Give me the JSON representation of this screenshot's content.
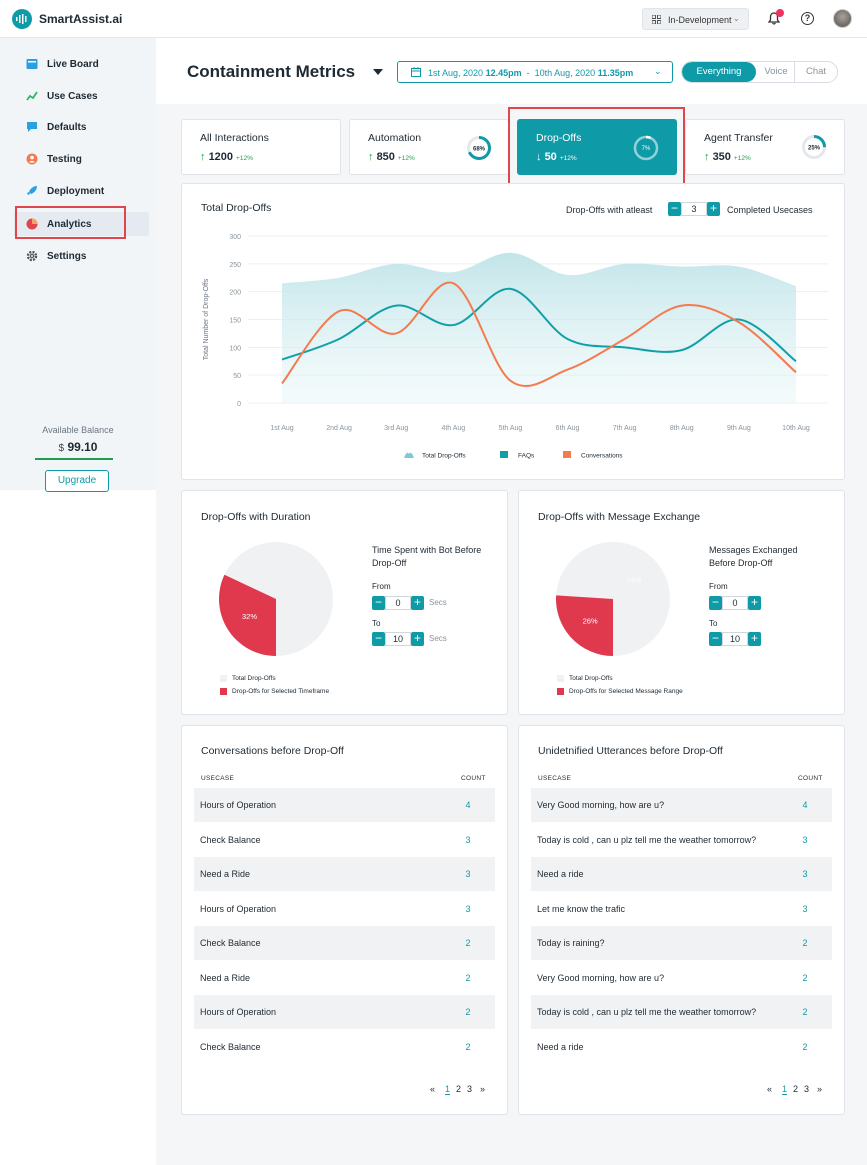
{
  "app": {
    "name": "SmartAssist.ai"
  },
  "topbar": {
    "environment": "In-Development"
  },
  "sidebar": {
    "items": [
      {
        "label": "Live Board",
        "icon": "board-icon"
      },
      {
        "label": "Use Cases",
        "icon": "usecases-icon"
      },
      {
        "label": "Defaults",
        "icon": "defaults-icon"
      },
      {
        "label": "Testing",
        "icon": "testing-icon"
      },
      {
        "label": "Deployment",
        "icon": "rocket-icon"
      },
      {
        "label": "Analytics",
        "icon": "analytics-icon"
      },
      {
        "label": "Settings",
        "icon": "gear-icon"
      }
    ],
    "balance_label": "Available Balance",
    "balance_currency": "$",
    "balance_value": "99.10",
    "upgrade_label": "Upgrade"
  },
  "header": {
    "title": "Containment Metrics",
    "date_from_date": "1st Aug, 2020",
    "date_from_time": "12.45pm",
    "date_sep": "-",
    "date_to_date": "10th Aug, 2020",
    "date_to_time": "11.35pm",
    "channels": [
      "Everything",
      "Voice",
      "Chat"
    ],
    "selected_channel": "Everything"
  },
  "kpis": [
    {
      "name": "All Interactions",
      "arrow": "↑",
      "value": "1200",
      "change": "+12%"
    },
    {
      "name": "Automation",
      "arrow": "↑",
      "value": "850",
      "change": "+12%",
      "donut": "68%",
      "donut_value": 0.68
    },
    {
      "name": "Drop-Offs",
      "arrow": "↓",
      "value": "50",
      "change": "+12%",
      "donut": "7%",
      "donut_value": 0.07
    },
    {
      "name": "Agent Transfer",
      "arrow": "↑",
      "value": "350",
      "change": "+12%",
      "donut": "25%",
      "donut_value": 0.25
    }
  ],
  "dropoffs_chart": {
    "title": "Total Drop-Offs",
    "filter_prefix": "Drop-Offs with atleast",
    "filter_value": "3",
    "filter_suffix": "Completed Usecases",
    "minus": "−",
    "plus": "+"
  },
  "chart_data": {
    "type": "line",
    "ylabel": "Total Number of Drop-Offs",
    "ylim": [
      0,
      300
    ],
    "yticks": [
      300,
      250,
      200,
      150,
      100,
      50,
      0
    ],
    "categories": [
      "1st Aug",
      "2nd Aug",
      "3rd Aug",
      "4th Aug",
      "5th Aug",
      "6th Aug",
      "7th Aug",
      "8th Aug",
      "9th Aug",
      "10th Aug"
    ],
    "series": [
      {
        "name": "Total Drop-Offs",
        "kind": "area",
        "color": "#bfe4e8",
        "values": [
          215,
          225,
          250,
          235,
          270,
          230,
          250,
          245,
          245,
          210
        ]
      },
      {
        "name": "FAQs",
        "kind": "line",
        "color": "#12a0a8",
        "values": [
          78,
          115,
          175,
          140,
          205,
          115,
          100,
          95,
          150,
          75
        ]
      },
      {
        "name": "Conversations",
        "kind": "line",
        "color": "#f47b4f",
        "values": [
          35,
          165,
          125,
          215,
          40,
          60,
          115,
          175,
          145,
          55
        ]
      }
    ],
    "legend_position": "bottom"
  },
  "duration_card": {
    "title": "Drop-Offs with Duration",
    "filter_title": "Time Spent with Bot Before Drop-Off",
    "from_label": "From",
    "from_value": "0",
    "to_label": "To",
    "to_value": "10",
    "unit": "Secs",
    "pie_label": "32%",
    "pie_value": 0.32,
    "legend": [
      "Total Drop-Offs",
      "Drop-Offs for Selected Timeframe"
    ],
    "colors": {
      "rest": "#f0f1f3",
      "selected": "#e0394d"
    }
  },
  "message_card": {
    "title": "Drop-Offs with Message Exchange",
    "filter_title": "Messages  Exchanged Before Drop-Off",
    "from_label": "From",
    "from_value": "0",
    "to_label": "To",
    "to_value": "10",
    "pie_label": "26%",
    "pie_rest_label": "74%",
    "pie_value": 0.26,
    "legend": [
      "Total Drop-Offs",
      "Drop-Offs for Selected Message Range"
    ],
    "colors": {
      "rest": "#f0f1f3",
      "selected": "#e0394d"
    }
  },
  "conversations_table": {
    "title": "Conversations before Drop-Off",
    "columns": [
      "USECASE",
      "COUNT"
    ],
    "rows": [
      [
        "Hours of Operation",
        "4"
      ],
      [
        "Check Balance",
        "3"
      ],
      [
        "Need a Ride",
        "3"
      ],
      [
        "Hours of Operation",
        "3"
      ],
      [
        "Check Balance",
        "2"
      ],
      [
        "Need a Ride",
        "2"
      ],
      [
        "Hours of Operation",
        "2"
      ],
      [
        "Check Balance",
        "2"
      ]
    ],
    "pager": {
      "prev": "«",
      "pages": [
        "1",
        "2",
        "3"
      ],
      "next": "»"
    }
  },
  "utterances_table": {
    "title": "Unidetnified Utterances before Drop-Off",
    "columns": [
      "USECASE",
      "COUNT"
    ],
    "rows": [
      [
        "Very Good morning, how are u?",
        "4"
      ],
      [
        "Today is cold , can u plz tell me the weather tomorrow?",
        "3"
      ],
      [
        "Need a ride",
        "3"
      ],
      [
        "Let me know the trafic",
        "3"
      ],
      [
        "Today is raining?",
        "2"
      ],
      [
        "Very Good morning, how are u?",
        "2"
      ],
      [
        "Today is cold , can u plz tell me the weather tomorrow?",
        "2"
      ],
      [
        "Need a ride",
        "2"
      ]
    ],
    "pager": {
      "prev": "«",
      "pages": [
        "1",
        "2",
        "3"
      ],
      "next": "»"
    }
  }
}
